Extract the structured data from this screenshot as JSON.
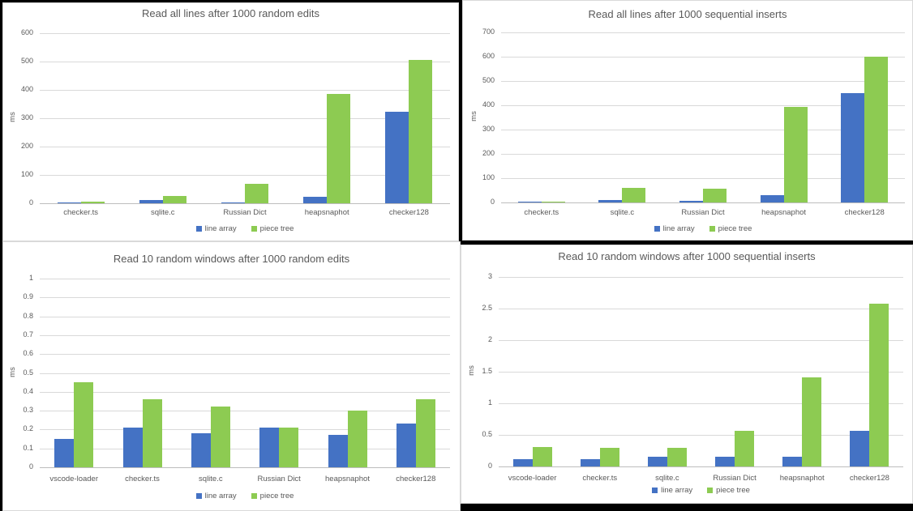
{
  "background_color": "#000000",
  "panel_color": "#ffffff",
  "text_color": "#595959",
  "gridline_color": "#d9d9d9",
  "accent_colors": {
    "line_array": "#4472c4",
    "piece_tree": "#8dcb52"
  },
  "chart_data": [
    {
      "type": "bar",
      "title": "Read all lines after 1000 random edits",
      "xlabel": "",
      "ylabel": "ms",
      "ylim": [
        0,
        600
      ],
      "yticks": [
        "0",
        "100",
        "200",
        "300",
        "400",
        "500",
        "600"
      ],
      "grid": true,
      "legend_position": "bottom",
      "categories": [
        "checker.ts",
        "sqlite.c",
        "Russian Dict",
        "heapsnaphot",
        "checker128"
      ],
      "series": [
        {
          "name": "line array",
          "color": "#4472c4",
          "values": [
            4,
            12,
            4,
            23,
            323
          ]
        },
        {
          "name": "piece tree",
          "color": "#8dcb52",
          "values": [
            6,
            25,
            70,
            385,
            505
          ]
        }
      ]
    },
    {
      "type": "bar",
      "title": "Read all lines after 1000 sequential inserts",
      "xlabel": "",
      "ylabel": "ms",
      "ylim": [
        0,
        700
      ],
      "yticks": [
        "0",
        "100",
        "200",
        "300",
        "400",
        "500",
        "600",
        "700"
      ],
      "grid": true,
      "legend_position": "bottom",
      "categories": [
        "checker.ts",
        "sqlite.c",
        "Russian Dict",
        "heapsnaphot",
        "checker128"
      ],
      "series": [
        {
          "name": "line array",
          "color": "#4472c4",
          "values": [
            4,
            10,
            8,
            30,
            450
          ]
        },
        {
          "name": "piece tree",
          "color": "#8dcb52",
          "values": [
            3,
            60,
            56,
            395,
            600
          ]
        }
      ]
    },
    {
      "type": "bar",
      "title": "Read 10 random windows after 1000 random edits",
      "xlabel": "",
      "ylabel": "ms",
      "ylim": [
        0,
        1
      ],
      "yticks": [
        "0",
        "0.1",
        "0.2",
        "0.3",
        "0.4",
        "0.5",
        "0.6",
        "0.7",
        "0.8",
        "0.9",
        "1"
      ],
      "grid": true,
      "legend_position": "bottom",
      "categories": [
        "vscode-loader",
        "checker.ts",
        "sqlite.c",
        "Russian Dict",
        "heapsnaphot",
        "checker128"
      ],
      "series": [
        {
          "name": "line array",
          "color": "#4472c4",
          "values": [
            0.15,
            0.21,
            0.18,
            0.21,
            0.17,
            0.23
          ]
        },
        {
          "name": "piece tree",
          "color": "#8dcb52",
          "values": [
            0.45,
            0.36,
            0.32,
            0.21,
            0.3,
            0.36
          ]
        }
      ]
    },
    {
      "type": "bar",
      "title": "Read 10 random windows after 1000 sequential inserts",
      "xlabel": "",
      "ylabel": "ms",
      "ylim": [
        0,
        3
      ],
      "yticks": [
        "0",
        "0.5",
        "1",
        "1.5",
        "2",
        "2.5",
        "3"
      ],
      "grid": true,
      "legend_position": "bottom",
      "categories": [
        "vscode-loader",
        "checker.ts",
        "sqlite.c",
        "Russian Dict",
        "heapsnaphot",
        "checker128"
      ],
      "series": [
        {
          "name": "line array",
          "color": "#4472c4",
          "values": [
            0.12,
            0.12,
            0.15,
            0.15,
            0.16,
            0.57
          ]
        },
        {
          "name": "piece tree",
          "color": "#8dcb52",
          "values": [
            0.31,
            0.29,
            0.29,
            0.56,
            1.41,
            2.58
          ]
        }
      ]
    }
  ]
}
